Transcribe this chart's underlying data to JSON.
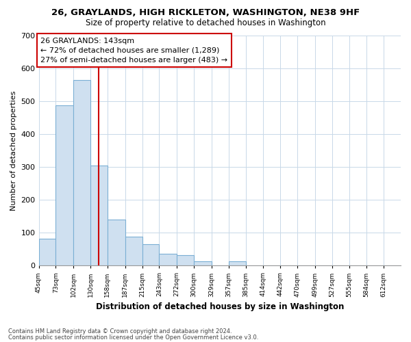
{
  "title1": "26, GRAYLANDS, HIGH RICKLETON, WASHINGTON, NE38 9HF",
  "title2": "Size of property relative to detached houses in Washington",
  "xlabel": "Distribution of detached houses by size in Washington",
  "ylabel": "Number of detached properties",
  "bar_color": "#cfe0f0",
  "bar_edge_color": "#7bafd4",
  "vline_x": 143,
  "vline_color": "#cc0000",
  "annotation_title": "26 GRAYLANDS: 143sqm",
  "annotation_line1": "← 72% of detached houses are smaller (1,289)",
  "annotation_line2": "27% of semi-detached houses are larger (483) →",
  "annotation_box_color": "#ffffff",
  "annotation_box_edge": "#cc0000",
  "footnote1": "Contains HM Land Registry data © Crown copyright and database right 2024.",
  "footnote2": "Contains public sector information licensed under the Open Government Licence v3.0.",
  "categories": [
    "45sqm",
    "73sqm",
    "102sqm",
    "130sqm",
    "158sqm",
    "187sqm",
    "215sqm",
    "243sqm",
    "272sqm",
    "300sqm",
    "329sqm",
    "357sqm",
    "385sqm",
    "414sqm",
    "442sqm",
    "470sqm",
    "499sqm",
    "527sqm",
    "555sqm",
    "584sqm",
    "612sqm"
  ],
  "values": [
    82,
    487,
    563,
    304,
    140,
    87,
    65,
    36,
    31,
    12,
    0,
    12,
    0,
    0,
    0,
    0,
    0,
    0,
    0,
    0,
    0
  ],
  "bin_edges": [
    45,
    73,
    102,
    130,
    158,
    187,
    215,
    243,
    272,
    300,
    329,
    357,
    385,
    414,
    442,
    470,
    499,
    527,
    555,
    584,
    612,
    640
  ],
  "ylim": [
    0,
    700
  ],
  "yticks": [
    0,
    100,
    200,
    300,
    400,
    500,
    600,
    700
  ],
  "background_color": "#ffffff",
  "grid_color": "#c8d8e8"
}
